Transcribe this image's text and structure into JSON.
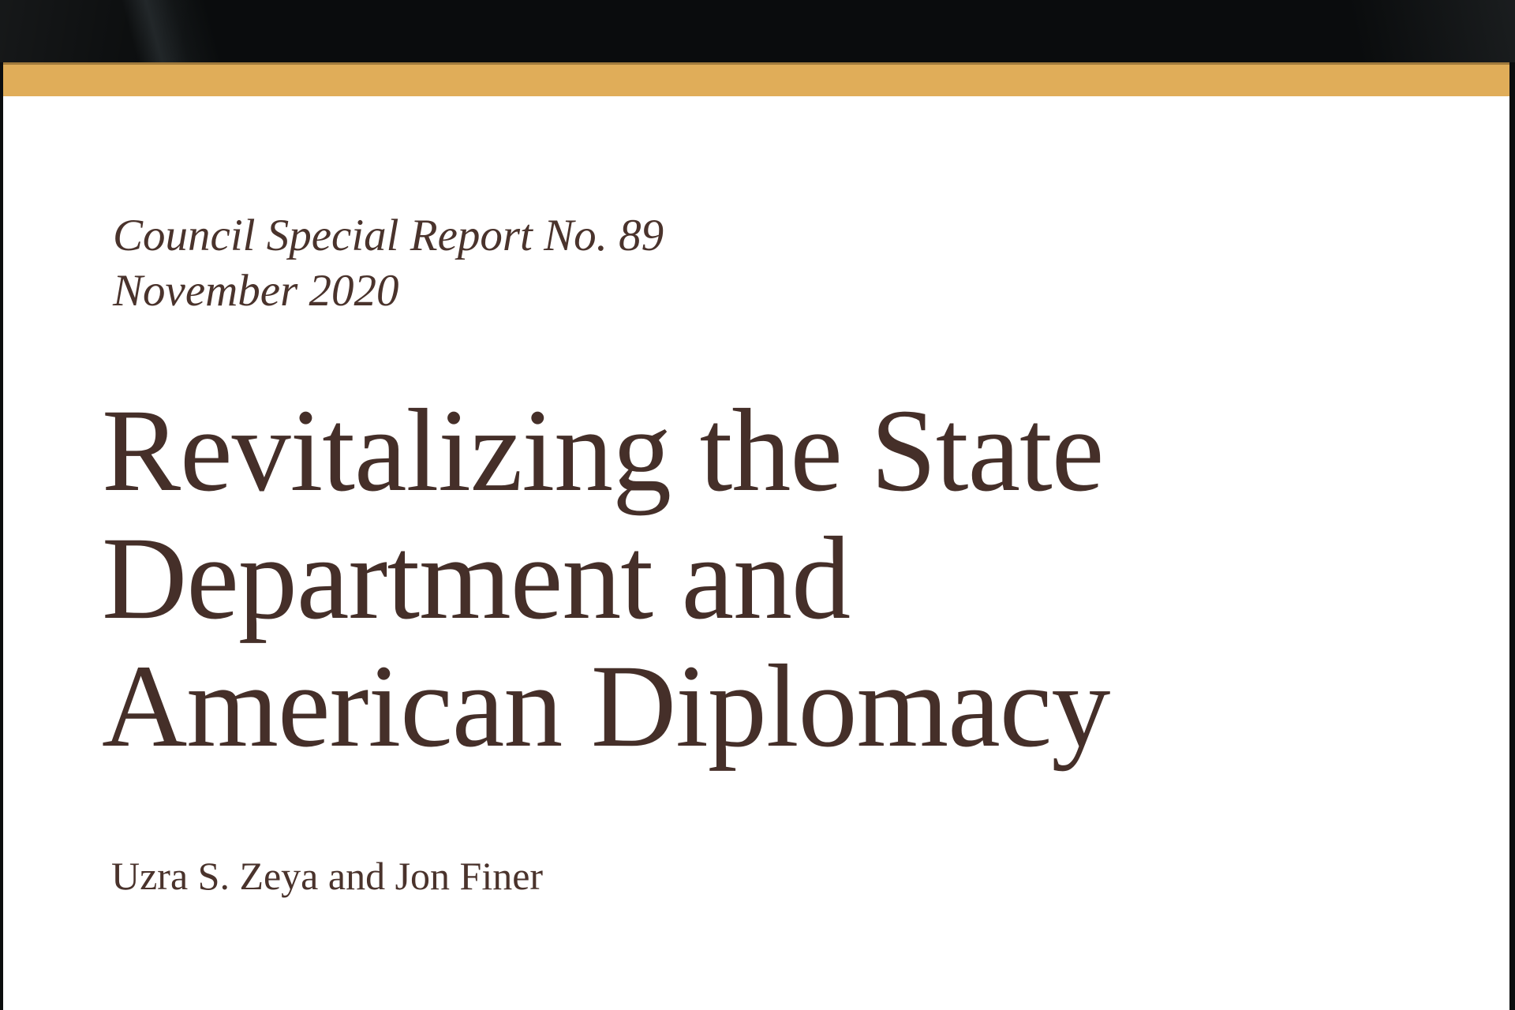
{
  "cover": {
    "series": "Council Special Report No. 89",
    "date": "November 2020",
    "title_lines": [
      "Revitalizing the State",
      "Department and",
      "American Diplomacy"
    ],
    "authors": "Uzra S. Zeya and Jon Finer"
  },
  "colors": {
    "accent_gold": "#E0AD59",
    "ink_brown": "#46302A",
    "paper_white": "#FFFFFF",
    "backdrop_dark": "#0B0D0E"
  }
}
